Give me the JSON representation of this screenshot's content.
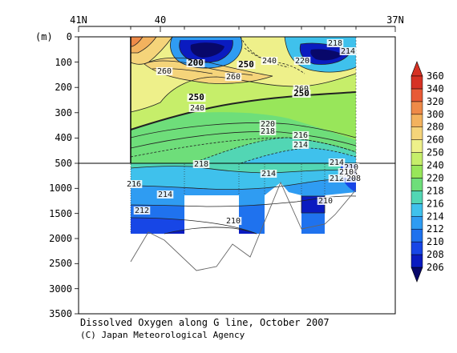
{
  "chart_data": {
    "type": "heatmap",
    "title": "Dissolved Oxygen along G line, October 2007",
    "credit": "(C) Japan Meteorological Agency",
    "ylabel": "(m)",
    "y_ticks_upper": [
      "0",
      "100",
      "200",
      "300",
      "400",
      "500"
    ],
    "y_ticks_lower": [
      "1000",
      "1500",
      "2000",
      "2500",
      "3000",
      "3500"
    ],
    "x_ticks": [
      "41N",
      "40",
      "37N"
    ],
    "colorbar": {
      "levels": [
        206,
        208,
        210,
        212,
        214,
        216,
        218,
        220,
        240,
        250,
        260,
        280,
        300,
        320,
        340,
        360
      ],
      "colors": [
        "#08086a",
        "#0a1bc0",
        "#1746e6",
        "#1f72ee",
        "#2f9cf2",
        "#3fc1ec",
        "#52d6b4",
        "#6ede7a",
        "#98e65a",
        "#c6ee6a",
        "#eef08a",
        "#f5d47a",
        "#f3b25e",
        "#ee8a48",
        "#e85a36",
        "#d63224"
      ]
    },
    "contour_labels": [
      {
        "text": "200",
        "bold": true
      },
      {
        "text": "240",
        "bold": false
      },
      {
        "text": "220",
        "bold": false
      },
      {
        "text": "218",
        "bold": false
      },
      {
        "text": "214",
        "bold": false
      },
      {
        "text": "250",
        "bold": true
      },
      {
        "text": "260",
        "bold": false
      },
      {
        "text": "260",
        "bold": false
      },
      {
        "text": "260",
        "bold": false
      },
      {
        "text": "250",
        "bold": true
      },
      {
        "text": "250",
        "bold": true
      },
      {
        "text": "240",
        "bold": false
      },
      {
        "text": "220",
        "bold": false
      },
      {
        "text": "218",
        "bold": false
      },
      {
        "text": "216",
        "bold": false
      },
      {
        "text": "214",
        "bold": false
      },
      {
        "text": "218",
        "bold": false
      },
      {
        "text": "214",
        "bold": false
      },
      {
        "text": "214",
        "bold": false
      },
      {
        "text": "210",
        "bold": false
      },
      {
        "text": "216",
        "bold": false
      },
      {
        "text": "214",
        "bold": false
      },
      {
        "text": "212",
        "bold": false
      },
      {
        "text": "216",
        "bold": false
      },
      {
        "text": "212",
        "bold": false
      },
      {
        "text": "210",
        "bold": false
      },
      {
        "text": "210",
        "bold": false
      },
      {
        "text": "210",
        "bold": false
      },
      {
        "text": "208",
        "bold": false
      }
    ]
  }
}
